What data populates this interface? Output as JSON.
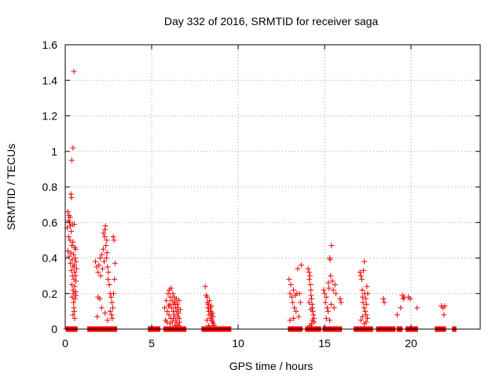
{
  "chart_data": {
    "type": "scatter",
    "title": "Day 332 of 2016, SRMTID for receiver saga",
    "xlabel": "GPS time / hours",
    "ylabel": "SRMTID / TECUs",
    "xlim": [
      0,
      24
    ],
    "ylim": [
      0,
      1.6
    ],
    "xticks": [
      {
        "value": 0,
        "label": "0"
      },
      {
        "value": 5,
        "label": "5"
      },
      {
        "value": 10,
        "label": "10"
      },
      {
        "value": 15,
        "label": "15"
      },
      {
        "value": 20,
        "label": "20"
      }
    ],
    "yticks": [
      {
        "value": 0,
        "label": "0"
      },
      {
        "value": 0.2,
        "label": "0.2"
      },
      {
        "value": 0.4,
        "label": "0.4"
      },
      {
        "value": 0.6,
        "label": "0.6"
      },
      {
        "value": 0.8,
        "label": "0.8"
      },
      {
        "value": 1.0,
        "label": "1"
      },
      {
        "value": 1.2,
        "label": "1.2"
      },
      {
        "value": 1.4,
        "label": "1.4"
      },
      {
        "value": 1.6,
        "label": "1.6"
      }
    ],
    "grid": true,
    "marker": "+",
    "color": "#ee0000",
    "series": [
      {
        "name": "SRMTID",
        "points": [
          [
            0.5,
            1.45
          ],
          [
            0.45,
            1.02
          ],
          [
            0.38,
            0.95
          ],
          [
            0.33,
            0.76
          ],
          [
            0.36,
            0.74
          ],
          [
            0.15,
            0.66
          ],
          [
            0.22,
            0.64
          ],
          [
            0.28,
            0.63
          ],
          [
            0.18,
            0.61
          ],
          [
            0.25,
            0.6
          ],
          [
            0.3,
            0.58
          ],
          [
            0.42,
            0.59
          ],
          [
            0.52,
            0.59
          ],
          [
            0.12,
            0.57
          ],
          [
            0.35,
            0.55
          ],
          [
            0.2,
            0.52
          ],
          [
            0.28,
            0.5
          ],
          [
            0.45,
            0.49
          ],
          [
            0.38,
            0.47
          ],
          [
            0.55,
            0.46
          ],
          [
            0.6,
            0.45
          ],
          [
            0.15,
            0.44
          ],
          [
            0.32,
            0.43
          ],
          [
            0.48,
            0.42
          ],
          [
            0.22,
            0.41
          ],
          [
            0.58,
            0.4
          ],
          [
            0.4,
            0.39
          ],
          [
            0.62,
            0.38
          ],
          [
            0.3,
            0.37
          ],
          [
            0.52,
            0.36
          ],
          [
            0.45,
            0.35
          ],
          [
            0.65,
            0.34
          ],
          [
            0.35,
            0.33
          ],
          [
            0.55,
            0.32
          ],
          [
            0.6,
            0.3
          ],
          [
            0.42,
            0.3
          ],
          [
            0.5,
            0.28
          ],
          [
            0.62,
            0.27
          ],
          [
            0.38,
            0.25
          ],
          [
            0.55,
            0.24
          ],
          [
            0.45,
            0.22
          ],
          [
            0.6,
            0.21
          ],
          [
            0.5,
            0.2
          ],
          [
            0.62,
            0.19
          ],
          [
            0.4,
            0.18
          ],
          [
            0.55,
            0.17
          ],
          [
            0.48,
            0.15
          ],
          [
            0.5,
            0.12
          ],
          [
            0.52,
            0.1
          ],
          [
            0.45,
            0.08
          ],
          [
            0.55,
            0.06
          ],
          [
            1.75,
            0.38
          ],
          [
            1.82,
            0.35
          ],
          [
            1.95,
            0.36
          ],
          [
            2.02,
            0.4
          ],
          [
            2.12,
            0.42
          ],
          [
            2.2,
            0.45
          ],
          [
            1.9,
            0.32
          ],
          [
            2.05,
            0.3
          ],
          [
            2.15,
            0.34
          ],
          [
            2.25,
            0.38
          ],
          [
            2.3,
            0.56
          ],
          [
            2.32,
            0.58
          ],
          [
            2.22,
            0.54
          ],
          [
            2.28,
            0.52
          ],
          [
            2.4,
            0.5
          ],
          [
            2.35,
            0.47
          ],
          [
            2.42,
            0.43
          ],
          [
            2.38,
            0.4
          ],
          [
            2.45,
            0.35
          ],
          [
            2.5,
            0.32
          ],
          [
            2.48,
            0.28
          ],
          [
            2.55,
            0.25
          ],
          [
            2.6,
            0.2
          ],
          [
            2.65,
            0.18
          ],
          [
            2.7,
            0.15
          ],
          [
            2.75,
            0.12
          ],
          [
            2.6,
            0.1
          ],
          [
            2.68,
            0.08
          ],
          [
            2.72,
            0.06
          ],
          [
            2.8,
            0.2
          ],
          [
            2.85,
            0.28
          ],
          [
            2.88,
            0.37
          ],
          [
            2.78,
            0.52
          ],
          [
            2.82,
            0.5
          ],
          [
            1.9,
            0.18
          ],
          [
            2.0,
            0.17
          ],
          [
            2.1,
            0.12
          ],
          [
            1.85,
            0.07
          ],
          [
            2.3,
            0.09
          ],
          [
            2.45,
            0.05
          ],
          [
            5.75,
            0.12
          ],
          [
            5.8,
            0.05
          ],
          [
            5.85,
            0.16
          ],
          [
            5.9,
            0.1
          ],
          [
            5.95,
            0.2
          ],
          [
            6.0,
            0.08
          ],
          [
            6.02,
            0.22
          ],
          [
            6.05,
            0.14
          ],
          [
            6.08,
            0.18
          ],
          [
            6.1,
            0.06
          ],
          [
            6.12,
            0.23
          ],
          [
            6.15,
            0.12
          ],
          [
            6.18,
            0.16
          ],
          [
            6.2,
            0.04
          ],
          [
            6.22,
            0.2
          ],
          [
            6.25,
            0.1
          ],
          [
            6.28,
            0.14
          ],
          [
            6.3,
            0.18
          ],
          [
            6.32,
            0.08
          ],
          [
            6.35,
            0.15
          ],
          [
            6.38,
            0.12
          ],
          [
            6.4,
            0.05
          ],
          [
            6.42,
            0.17
          ],
          [
            6.45,
            0.1
          ],
          [
            6.48,
            0.14
          ],
          [
            6.5,
            0.07
          ],
          [
            6.52,
            0.12
          ],
          [
            6.55,
            0.09
          ],
          [
            6.58,
            0.16
          ],
          [
            6.6,
            0.06
          ],
          [
            6.62,
            0.04
          ],
          [
            6.65,
            0.11
          ],
          [
            5.88,
            0.04
          ],
          [
            5.98,
            0.13
          ],
          [
            6.06,
            0.03
          ],
          [
            6.26,
            0.06
          ],
          [
            6.36,
            0.02
          ],
          [
            6.46,
            0.03
          ],
          [
            6.56,
            0.02
          ],
          [
            8.1,
            0.24
          ],
          [
            8.15,
            0.19
          ],
          [
            8.2,
            0.18
          ],
          [
            8.22,
            0.15
          ],
          [
            8.25,
            0.12
          ],
          [
            8.28,
            0.14
          ],
          [
            8.3,
            0.1
          ],
          [
            8.32,
            0.08
          ],
          [
            8.35,
            0.16
          ],
          [
            8.38,
            0.12
          ],
          [
            8.4,
            0.06
          ],
          [
            8.42,
            0.1
          ],
          [
            8.45,
            0.08
          ],
          [
            8.48,
            0.05
          ],
          [
            8.5,
            0.09
          ],
          [
            8.52,
            0.04
          ],
          [
            8.55,
            0.07
          ],
          [
            8.58,
            0.03
          ],
          [
            8.2,
            0.05
          ],
          [
            8.3,
            0.02
          ],
          [
            8.45,
            0.13
          ],
          [
            8.6,
            0.02
          ],
          [
            12.95,
            0.28
          ],
          [
            13.0,
            0.2
          ],
          [
            13.05,
            0.25
          ],
          [
            13.1,
            0.18
          ],
          [
            13.15,
            0.15
          ],
          [
            13.2,
            0.22
          ],
          [
            13.25,
            0.12
          ],
          [
            13.3,
            0.19
          ],
          [
            13.35,
            0.1
          ],
          [
            13.4,
            0.2
          ],
          [
            13.45,
            0.34
          ],
          [
            13.5,
            0.07
          ],
          [
            13.0,
            0.05
          ],
          [
            13.2,
            0.06
          ],
          [
            13.65,
            0.36
          ],
          [
            13.55,
            0.2
          ],
          [
            13.6,
            0.15
          ],
          [
            14.05,
            0.34
          ],
          [
            14.1,
            0.32
          ],
          [
            14.12,
            0.28
          ],
          [
            14.15,
            0.3
          ],
          [
            14.18,
            0.25
          ],
          [
            14.2,
            0.22
          ],
          [
            14.22,
            0.19
          ],
          [
            14.25,
            0.17
          ],
          [
            14.28,
            0.14
          ],
          [
            14.3,
            0.12
          ],
          [
            14.32,
            0.1
          ],
          [
            14.35,
            0.08
          ],
          [
            14.38,
            0.06
          ],
          [
            14.4,
            0.04
          ],
          [
            14.15,
            0.02
          ],
          [
            14.25,
            0.03
          ],
          [
            14.1,
            0.15
          ],
          [
            14.2,
            0.11
          ],
          [
            14.3,
            0.05
          ],
          [
            14.95,
            0.22
          ],
          [
            15.0,
            0.2
          ],
          [
            15.05,
            0.15
          ],
          [
            15.1,
            0.18
          ],
          [
            15.15,
            0.12
          ],
          [
            15.2,
            0.1
          ],
          [
            15.22,
            0.26
          ],
          [
            15.25,
            0.23
          ],
          [
            15.3,
            0.4
          ],
          [
            15.32,
            0.39
          ],
          [
            15.35,
            0.3
          ],
          [
            15.38,
            0.14
          ],
          [
            15.4,
            0.47
          ],
          [
            15.45,
            0.27
          ],
          [
            15.5,
            0.22
          ],
          [
            15.55,
            0.12
          ],
          [
            15.6,
            0.25
          ],
          [
            15.65,
            0.2
          ],
          [
            15.1,
            0.06
          ],
          [
            15.3,
            0.05
          ],
          [
            15.9,
            0.17
          ],
          [
            15.95,
            0.15
          ],
          [
            17.05,
            0.32
          ],
          [
            17.1,
            0.3
          ],
          [
            17.15,
            0.28
          ],
          [
            17.18,
            0.22
          ],
          [
            17.2,
            0.18
          ],
          [
            17.22,
            0.15
          ],
          [
            17.25,
            0.33
          ],
          [
            17.28,
            0.12
          ],
          [
            17.3,
            0.38
          ],
          [
            17.32,
            0.2
          ],
          [
            17.35,
            0.1
          ],
          [
            17.38,
            0.17
          ],
          [
            17.4,
            0.08
          ],
          [
            17.42,
            0.14
          ],
          [
            17.45,
            0.24
          ],
          [
            17.48,
            0.06
          ],
          [
            17.5,
            0.2
          ],
          [
            17.1,
            0.05
          ],
          [
            17.2,
            0.07
          ],
          [
            17.3,
            0.03
          ],
          [
            17.4,
            0.04
          ],
          [
            18.4,
            0.17
          ],
          [
            18.45,
            0.15
          ],
          [
            19.2,
            0.08
          ],
          [
            19.4,
            0.12
          ],
          [
            19.5,
            0.19
          ],
          [
            19.55,
            0.17
          ],
          [
            19.6,
            0.18
          ],
          [
            19.85,
            0.18
          ],
          [
            19.95,
            0.17
          ],
          [
            20.35,
            0.12
          ],
          [
            21.75,
            0.13
          ],
          [
            21.85,
            0.12
          ],
          [
            21.95,
            0.13
          ],
          [
            21.9,
            0.08
          ]
        ],
        "zero_segments": [
          [
            0.05,
            0.7
          ],
          [
            1.3,
            3.0
          ],
          [
            4.8,
            5.5
          ],
          [
            5.7,
            7.0
          ],
          [
            7.9,
            9.6
          ],
          [
            12.9,
            13.7
          ],
          [
            13.9,
            14.8
          ],
          [
            14.9,
            16.0
          ],
          [
            16.7,
            17.8
          ],
          [
            18.0,
            19.1
          ],
          [
            19.2,
            19.5
          ],
          [
            19.7,
            20.4
          ],
          [
            21.4,
            22.0
          ],
          [
            22.4,
            22.6
          ]
        ]
      }
    ]
  }
}
